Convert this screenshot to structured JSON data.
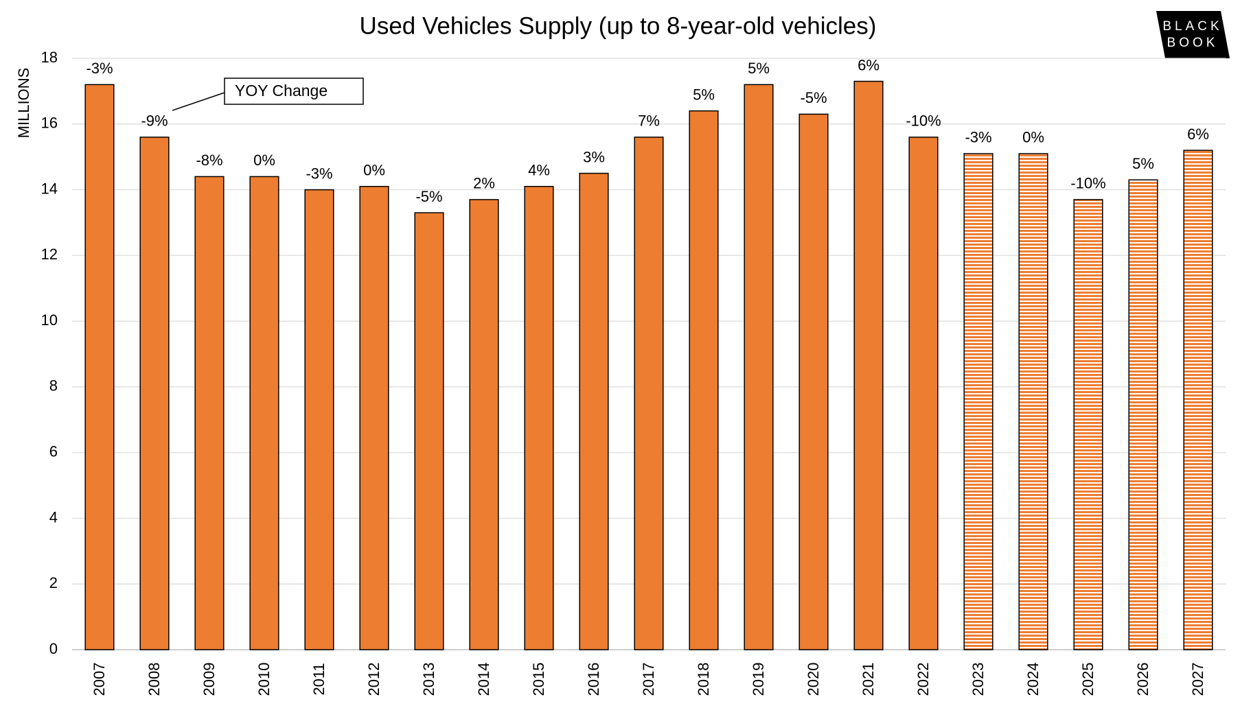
{
  "chart_data": {
    "type": "bar",
    "title": "Used Vehicles Supply (up to 8-year-old vehicles)",
    "y_label": "MILLIONS",
    "logo": [
      "BLACK",
      "BOOK"
    ],
    "categories": [
      "2007",
      "2008",
      "2009",
      "2010",
      "2011",
      "2012",
      "2013",
      "2014",
      "2015",
      "2016",
      "2017",
      "2018",
      "2019",
      "2020",
      "2021",
      "2022",
      "2023",
      "2024",
      "2025",
      "2026",
      "2027"
    ],
    "values": [
      17.2,
      15.6,
      14.4,
      14.4,
      14.0,
      14.1,
      13.3,
      13.7,
      14.1,
      14.5,
      15.6,
      16.4,
      17.2,
      16.3,
      17.3,
      15.6,
      15.1,
      15.1,
      13.7,
      14.3,
      15.2
    ],
    "color": "#ed7d31",
    "forecast_from": "2023",
    "yoy_change": {
      "name": "YOY Change",
      "values": [
        -3,
        -9,
        -8,
        0,
        -3,
        0,
        -5,
        2,
        4,
        3,
        7,
        5,
        5,
        -5,
        6,
        -10,
        -3,
        0,
        -10,
        5,
        6
      ],
      "value_labels": [
        "-3%",
        "-9%",
        "-8%",
        "0%",
        "-3%",
        "0%",
        "-5%",
        "2%",
        "4%",
        "3%",
        "7%",
        "5%",
        "5%",
        "-5%",
        "6%",
        "-10%",
        "-3%",
        "0%",
        "-10%",
        "5%",
        "6%"
      ]
    },
    "ylim": [
      0,
      18
    ],
    "yticks": [
      0,
      2,
      4,
      6,
      8,
      10,
      12,
      14,
      16,
      18
    ],
    "grid": true
  }
}
